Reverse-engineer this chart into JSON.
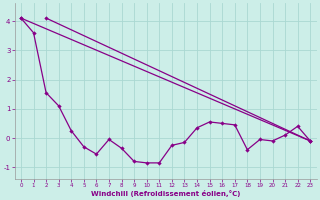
{
  "background_color": "#cceee8",
  "grid_color": "#aad8d2",
  "line_color": "#880088",
  "xlabel": "Windchill (Refroidissement éolien,°C)",
  "ylim": [
    -1.4,
    4.6
  ],
  "xlim": [
    -0.5,
    23.5
  ],
  "yticks": [
    -1,
    0,
    1,
    2,
    3,
    4
  ],
  "xticks": [
    0,
    1,
    2,
    3,
    4,
    5,
    6,
    7,
    8,
    9,
    10,
    11,
    12,
    13,
    14,
    15,
    16,
    17,
    18,
    19,
    20,
    21,
    22,
    23
  ],
  "line1_x": [
    0,
    23
  ],
  "line1_y": [
    4.1,
    -0.1
  ],
  "line2_x": [
    2,
    23
  ],
  "line2_y": [
    4.1,
    -0.1
  ],
  "jagged_x": [
    0,
    1,
    2,
    3,
    4,
    5,
    6,
    7,
    8,
    9,
    10,
    11,
    12,
    13,
    14,
    15,
    16,
    17,
    18,
    19,
    20,
    21,
    22,
    23
  ],
  "jagged_y": [
    4.1,
    3.6,
    1.55,
    1.1,
    0.25,
    -0.3,
    -0.55,
    -0.05,
    -0.35,
    -0.8,
    -0.85,
    -0.85,
    -0.25,
    -0.15,
    0.35,
    0.55,
    0.5,
    0.45,
    -0.4,
    -0.05,
    -0.1,
    0.1,
    0.4,
    -0.1
  ]
}
